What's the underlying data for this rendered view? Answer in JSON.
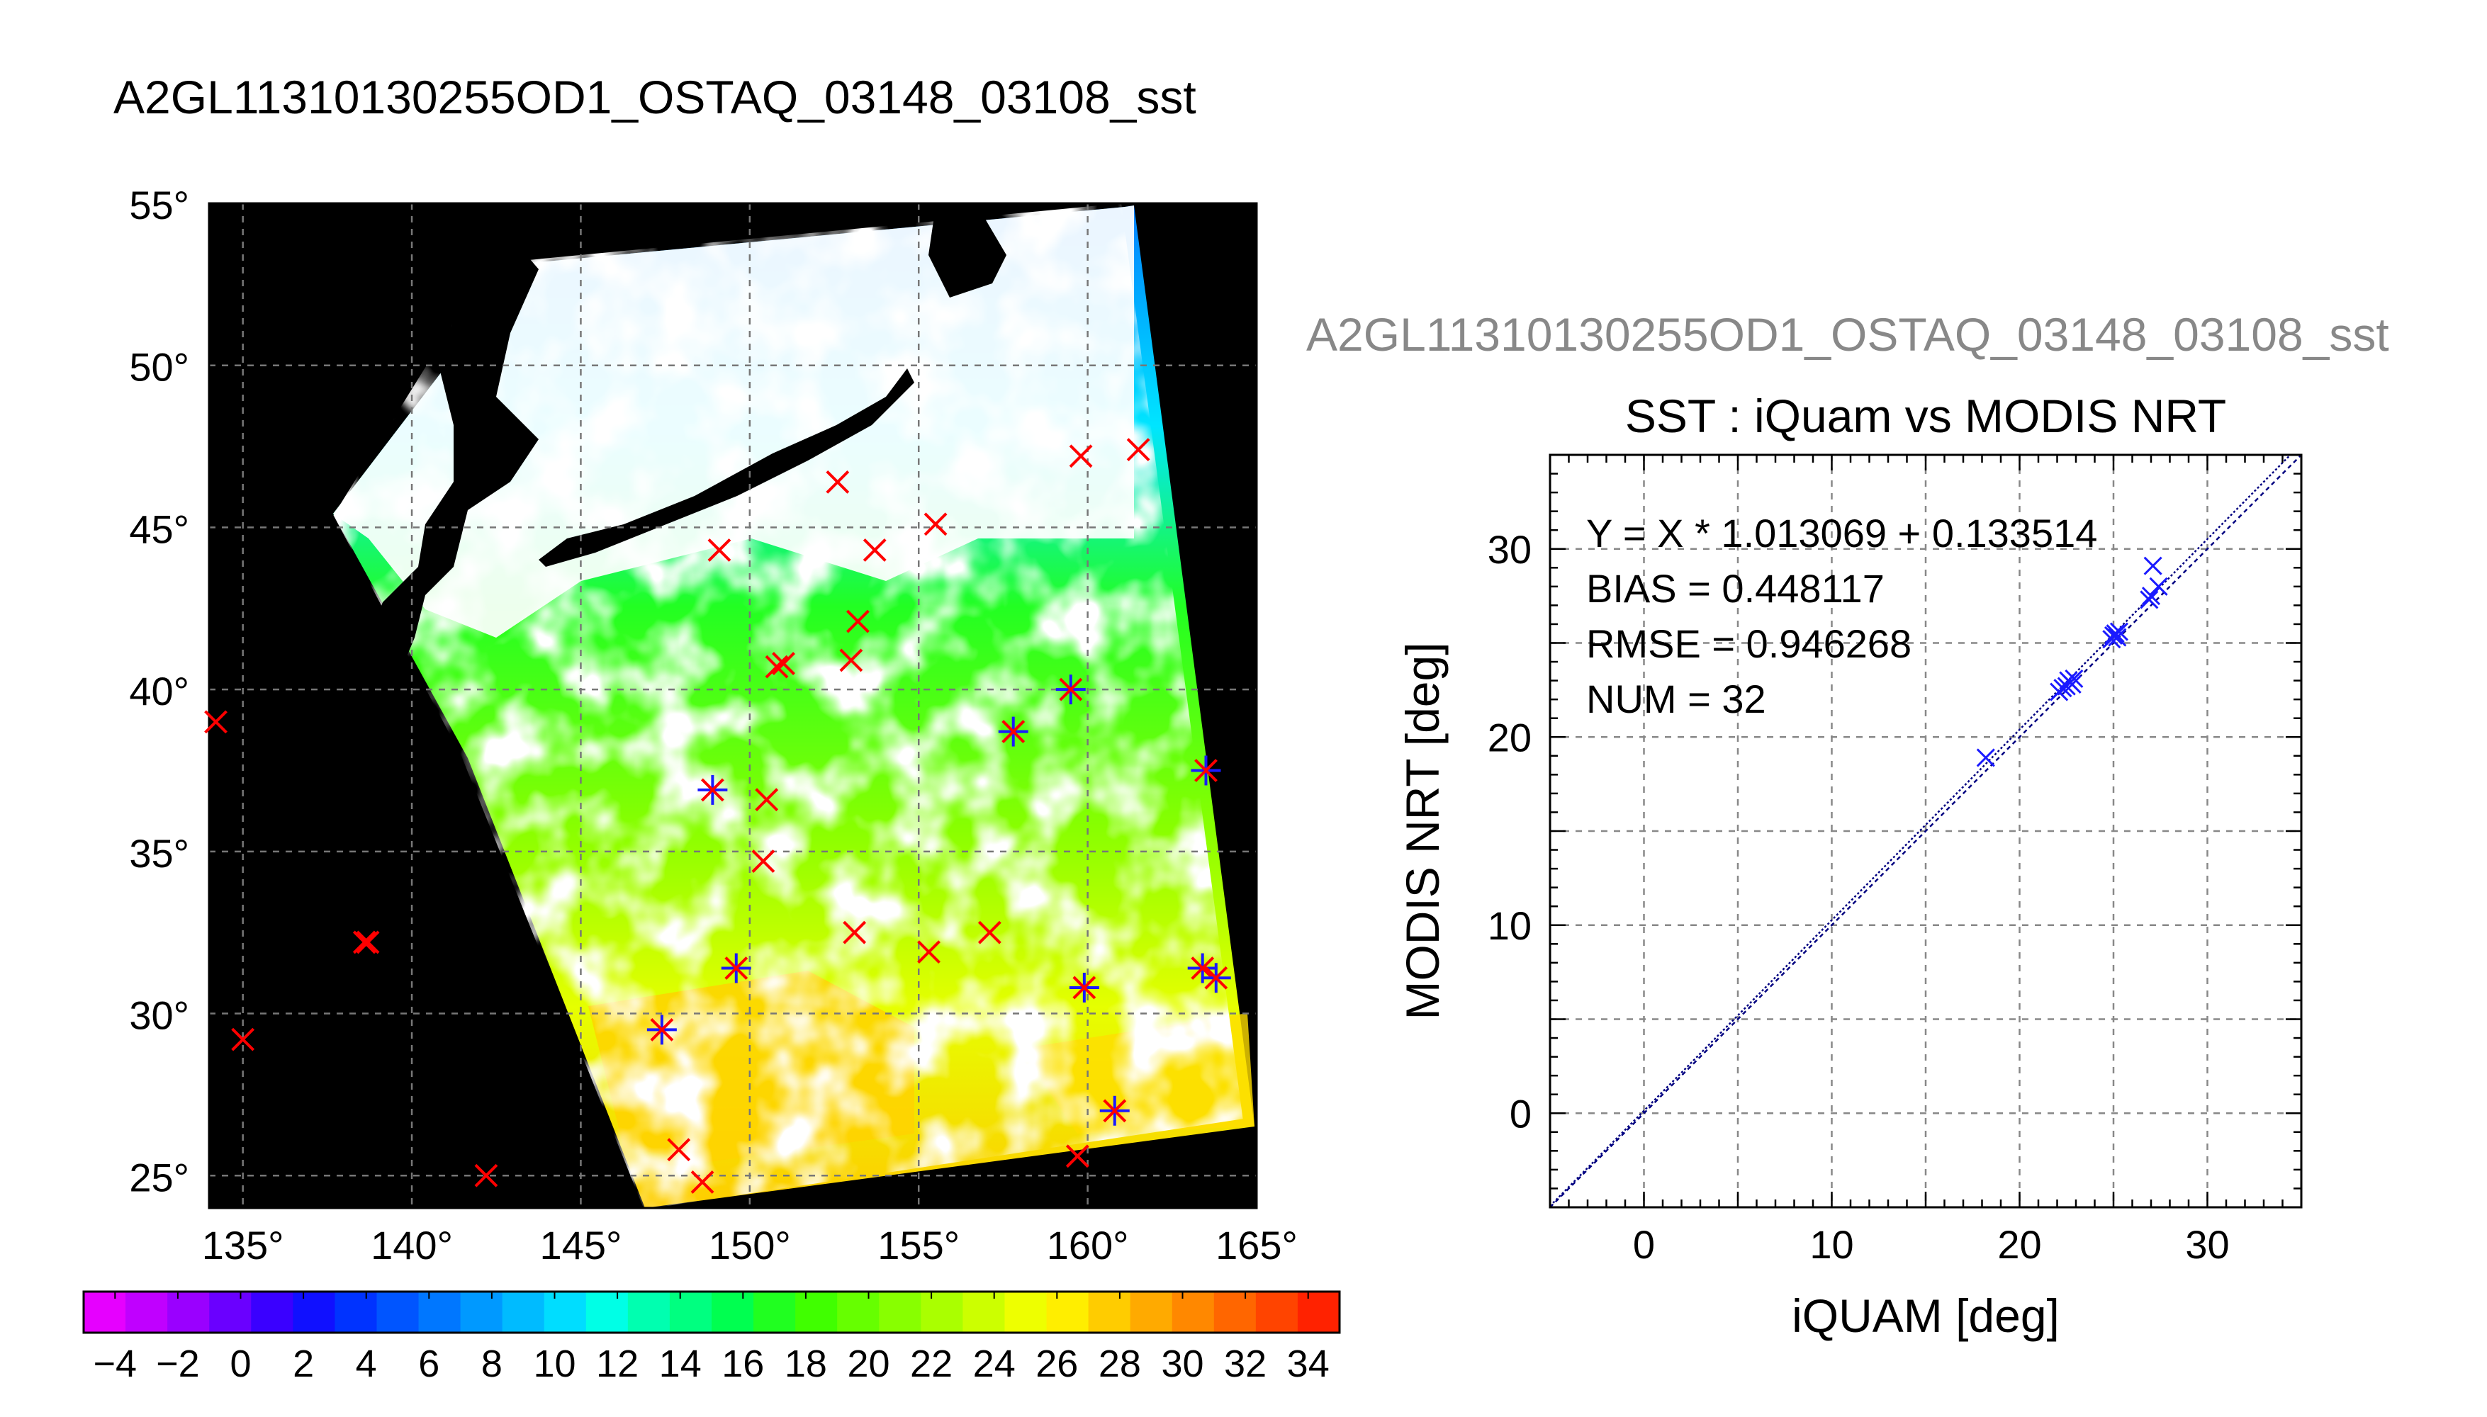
{
  "map": {
    "title": "A2GL11310130255OD1_OSTAQ_03148_03108_sst",
    "lat_ticks": [
      55,
      50,
      45,
      40,
      35,
      30,
      25
    ],
    "lon_ticks": [
      135,
      140,
      145,
      150,
      155,
      160,
      165
    ],
    "lat_range": [
      24,
      55
    ],
    "lon_range": [
      134,
      165
    ],
    "degree_symbol": "°",
    "colorbar": {
      "range": [
        -5,
        35
      ],
      "tick_labels": [
        "−4",
        "−2",
        "0",
        "2",
        "4",
        "6",
        "8",
        "10",
        "12",
        "14",
        "16",
        "18",
        "20",
        "22",
        "24",
        "26",
        "28",
        "30",
        "32",
        "34"
      ],
      "tick_values": [
        -4,
        -2,
        0,
        2,
        4,
        6,
        8,
        10,
        12,
        14,
        16,
        18,
        20,
        22,
        24,
        26,
        28,
        30,
        32,
        34
      ],
      "colors": [
        "#e600ff",
        "#c000ff",
        "#9a00ff",
        "#6a00ff",
        "#3a00ff",
        "#1010ff",
        "#0033ff",
        "#0055ff",
        "#0077ff",
        "#0099ff",
        "#00bbff",
        "#00ddff",
        "#00ffe6",
        "#00ffb0",
        "#00ff80",
        "#00ff50",
        "#20ff20",
        "#40ff00",
        "#66ff00",
        "#88ff00",
        "#aaff00",
        "#ccff00",
        "#eeff00",
        "#ffee00",
        "#ffcc00",
        "#ffaa00",
        "#ff8800",
        "#ff6600",
        "#ff4400",
        "#ff2200"
      ]
    },
    "markers": [
      {
        "lon": 134.2,
        "lat": 39.0,
        "star": false
      },
      {
        "lon": 138.6,
        "lat": 32.2,
        "star": false
      },
      {
        "lon": 138.7,
        "lat": 32.2,
        "star": false
      },
      {
        "lon": 135.0,
        "lat": 29.2,
        "star": false
      },
      {
        "lon": 142.2,
        "lat": 25.0,
        "star": false
      },
      {
        "lon": 147.9,
        "lat": 25.8,
        "star": false
      },
      {
        "lon": 148.6,
        "lat": 24.8,
        "star": false
      },
      {
        "lon": 147.4,
        "lat": 29.5,
        "star": true
      },
      {
        "lon": 149.6,
        "lat": 31.4,
        "star": true
      },
      {
        "lon": 148.9,
        "lat": 36.9,
        "star": true
      },
      {
        "lon": 150.4,
        "lat": 34.7,
        "star": false
      },
      {
        "lon": 150.5,
        "lat": 36.6,
        "star": false
      },
      {
        "lon": 150.8,
        "lat": 40.7,
        "star": false
      },
      {
        "lon": 151.0,
        "lat": 40.8,
        "star": false
      },
      {
        "lon": 149.1,
        "lat": 44.3,
        "star": false
      },
      {
        "lon": 152.6,
        "lat": 46.4,
        "star": false
      },
      {
        "lon": 153.0,
        "lat": 40.9,
        "star": false
      },
      {
        "lon": 153.2,
        "lat": 42.1,
        "star": false
      },
      {
        "lon": 153.7,
        "lat": 44.3,
        "star": false
      },
      {
        "lon": 155.5,
        "lat": 45.1,
        "star": false
      },
      {
        "lon": 153.1,
        "lat": 32.5,
        "star": false
      },
      {
        "lon": 155.3,
        "lat": 31.9,
        "star": false
      },
      {
        "lon": 157.1,
        "lat": 32.5,
        "star": false
      },
      {
        "lon": 157.8,
        "lat": 38.7,
        "star": true
      },
      {
        "lon": 159.5,
        "lat": 40.0,
        "star": true
      },
      {
        "lon": 159.8,
        "lat": 47.2,
        "star": false
      },
      {
        "lon": 161.5,
        "lat": 47.4,
        "star": false
      },
      {
        "lon": 159.9,
        "lat": 30.8,
        "star": true
      },
      {
        "lon": 159.7,
        "lat": 25.6,
        "star": false
      },
      {
        "lon": 160.8,
        "lat": 27.0,
        "star": true
      },
      {
        "lon": 163.5,
        "lat": 37.5,
        "star": true
      },
      {
        "lon": 163.4,
        "lat": 31.4,
        "star": true
      },
      {
        "lon": 163.8,
        "lat": 31.1,
        "star": true
      }
    ]
  },
  "scatter": {
    "outer_title": "A2GL11310130255OD1_OSTAQ_03148_03108_sst",
    "chart_data": {
      "type": "scatter",
      "title": "SST : iQuam vs MODIS NRT",
      "xlabel": "iQUAM [deg]",
      "ylabel": "MODIS NRT [deg]",
      "xlim": [
        -5,
        35
      ],
      "ylim": [
        -5,
        35
      ],
      "xticks": [
        0,
        10,
        20,
        30
      ],
      "yticks": [
        0,
        10,
        20,
        30
      ],
      "minor_step": 5,
      "grid": true,
      "points": [
        {
          "x": 18.2,
          "y": 18.9
        },
        {
          "x": 22.1,
          "y": 22.4
        },
        {
          "x": 22.3,
          "y": 22.6
        },
        {
          "x": 22.5,
          "y": 22.7
        },
        {
          "x": 22.6,
          "y": 23.0
        },
        {
          "x": 22.8,
          "y": 22.8
        },
        {
          "x": 22.9,
          "y": 23.1
        },
        {
          "x": 24.9,
          "y": 25.2
        },
        {
          "x": 25.0,
          "y": 25.4
        },
        {
          "x": 25.1,
          "y": 25.5
        },
        {
          "x": 25.2,
          "y": 25.3
        },
        {
          "x": 25.3,
          "y": 25.6
        },
        {
          "x": 26.9,
          "y": 27.3
        },
        {
          "x": 27.0,
          "y": 27.5
        },
        {
          "x": 27.1,
          "y": 29.1
        },
        {
          "x": 27.4,
          "y": 28.0
        }
      ],
      "fit": {
        "slope": 1.013069,
        "intercept": 0.133514
      },
      "stats": [
        "Y = X * 1.013069 + 0.133514",
        "BIAS = 0.448117",
        "RMSE = 0.946268",
        "NUM = 32"
      ],
      "colors": {
        "points": "#1a1aff",
        "fit_line": "#000080"
      }
    }
  },
  "marker_colors": {
    "x": "#ff0000",
    "star": "#1a1aff"
  }
}
